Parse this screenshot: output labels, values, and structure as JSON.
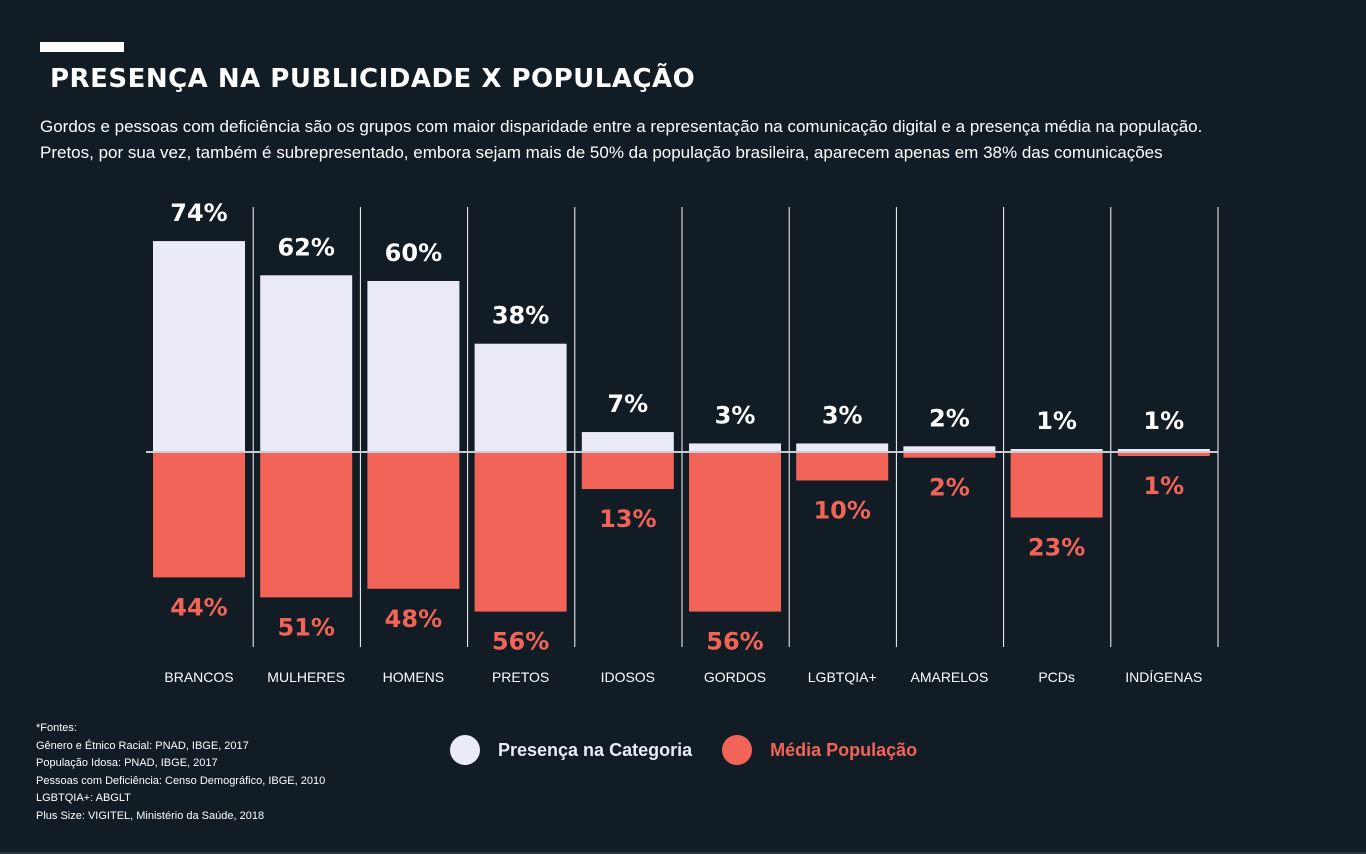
{
  "header": {
    "title": "PRESENÇA NA PUBLICIDADE X POPULAÇÃO",
    "subtitle_line1": "Gordos e pessoas com deficiência são os grupos com maior disparidade entre a representação na comunicação digital e a presença média na população.",
    "subtitle_line2": "Pretos, por sua vez, também é subrepresentado, embora sejam mais de 50% da população brasileira, aparecem apenas em 38% das comunicações"
  },
  "colors": {
    "background": "#111c24",
    "presence": "#ebeaf9",
    "population": "#f26458",
    "text": "#ffffff"
  },
  "chart_data": {
    "type": "bar",
    "categories": [
      "BRANCOS",
      "MULHERES",
      "HOMENS",
      "PRETOS",
      "IDOSOS",
      "GORDOS",
      "LGBTQIA+",
      "AMARELOS",
      "PCDs",
      "INDÍGENAS"
    ],
    "series": [
      {
        "name": "Presença na Categoria",
        "values": [
          74,
          62,
          60,
          38,
          7,
          3,
          3,
          2,
          1,
          1
        ],
        "labels": [
          "74%",
          "62%",
          "60%",
          "38%",
          "7%",
          "3%",
          "3%",
          "2%",
          "1%",
          "1%"
        ],
        "direction": "up"
      },
      {
        "name": "Média População",
        "values": [
          44,
          51,
          48,
          56,
          13,
          56,
          10,
          2,
          23,
          1
        ],
        "labels": [
          "44%",
          "51%",
          "48%",
          "56%",
          "13%",
          "56%",
          "10%",
          "2%",
          "23%",
          "1%"
        ],
        "direction": "down"
      }
    ],
    "grid": "vertical separators"
  },
  "legend": {
    "presence_label": "Presença na Categoria",
    "population_label": "Média População"
  },
  "footnotes": [
    "*Fontes:",
    "Gênero e Étnico Racial: PNAD, IBGE, 2017",
    "População Idosa: PNAD, IBGE, 2017",
    "Pessoas com Deficiência: Censo Demográfico, IBGE, 2010",
    "LGBTQIA+: ABGLT",
    "Plus Size: VIGITEL, Ministério da Saúde, 2018"
  ]
}
